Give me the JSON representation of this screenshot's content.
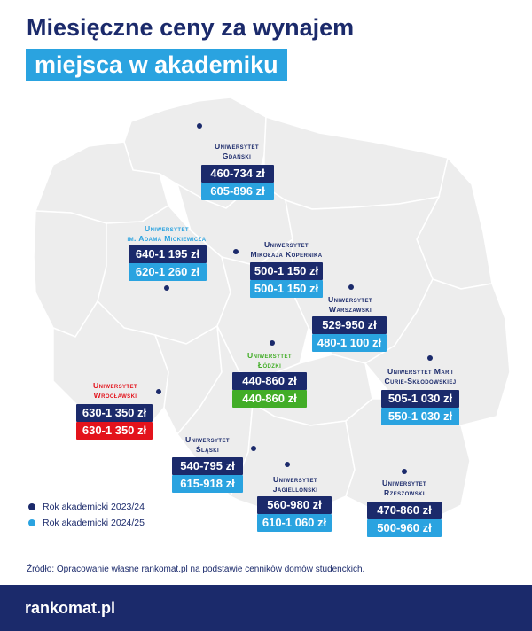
{
  "title": {
    "line1": "Miesięczne ceny za wynajem",
    "line2": "miejsca w akademiku"
  },
  "colors": {
    "year_2023": "#1b2a6b",
    "year_2024": "#2aa3e0",
    "lodz": "#42ad27",
    "wroclaw": "#e3131c"
  },
  "universities": [
    {
      "name_line1": "Uniwersytet",
      "name_line2": "Gdański",
      "price_2023_24": "460-734 zł",
      "price_2024_25": "605-896 zł"
    },
    {
      "name_line1": "Uniwersytet",
      "name_line2": "im. Adama Mickiewicza",
      "price_2023_24": "640-1 195 zł",
      "price_2024_25": "620-1 260 zł"
    },
    {
      "name_line1": "Uniwersytet",
      "name_line2": "Mikołaja Kopernika",
      "price_2023_24": "500-1 150 zł",
      "price_2024_25": "500-1 150 zł"
    },
    {
      "name_line1": "Uniwersytet",
      "name_line2": "Warszawski",
      "price_2023_24": "529-950 zł",
      "price_2024_25": "480-1 100 zł"
    },
    {
      "name_line1": "Uniwersytet",
      "name_line2": "Łódzki",
      "price_2023_24": "440-860 zł",
      "price_2024_25": "440-860 zł"
    },
    {
      "name_line1": "Uniwersytet Marii",
      "name_line2": "Curie-Skłodowskiej",
      "price_2023_24": "505-1 030 zł",
      "price_2024_25": "550-1 030 zł"
    },
    {
      "name_line1": "Uniwersytet",
      "name_line2": "Wrocławski",
      "price_2023_24": "630-1 350 zł",
      "price_2024_25": "630-1 350 zł"
    },
    {
      "name_line1": "Uniwersytet",
      "name_line2": "Śląski",
      "price_2023_24": "540-795 zł",
      "price_2024_25": "615-918 zł"
    },
    {
      "name_line1": "Uniwersytet",
      "name_line2": "Jagielloński",
      "price_2023_24": "560-980 zł",
      "price_2024_25": "610-1 060 zł"
    },
    {
      "name_line1": "Uniwersytet",
      "name_line2": "Rzeszowski",
      "price_2023_24": "470-860 zł",
      "price_2024_25": "500-960 zł"
    }
  ],
  "legend": {
    "year_2023": "Rok akademicki 2023/24",
    "year_2024": "Rok akademicki 2024/25"
  },
  "source": "Źródło: Opracowanie własne rankomat.pl na podstawie cenników domów studenckich.",
  "brand": "rankomat.pl"
}
